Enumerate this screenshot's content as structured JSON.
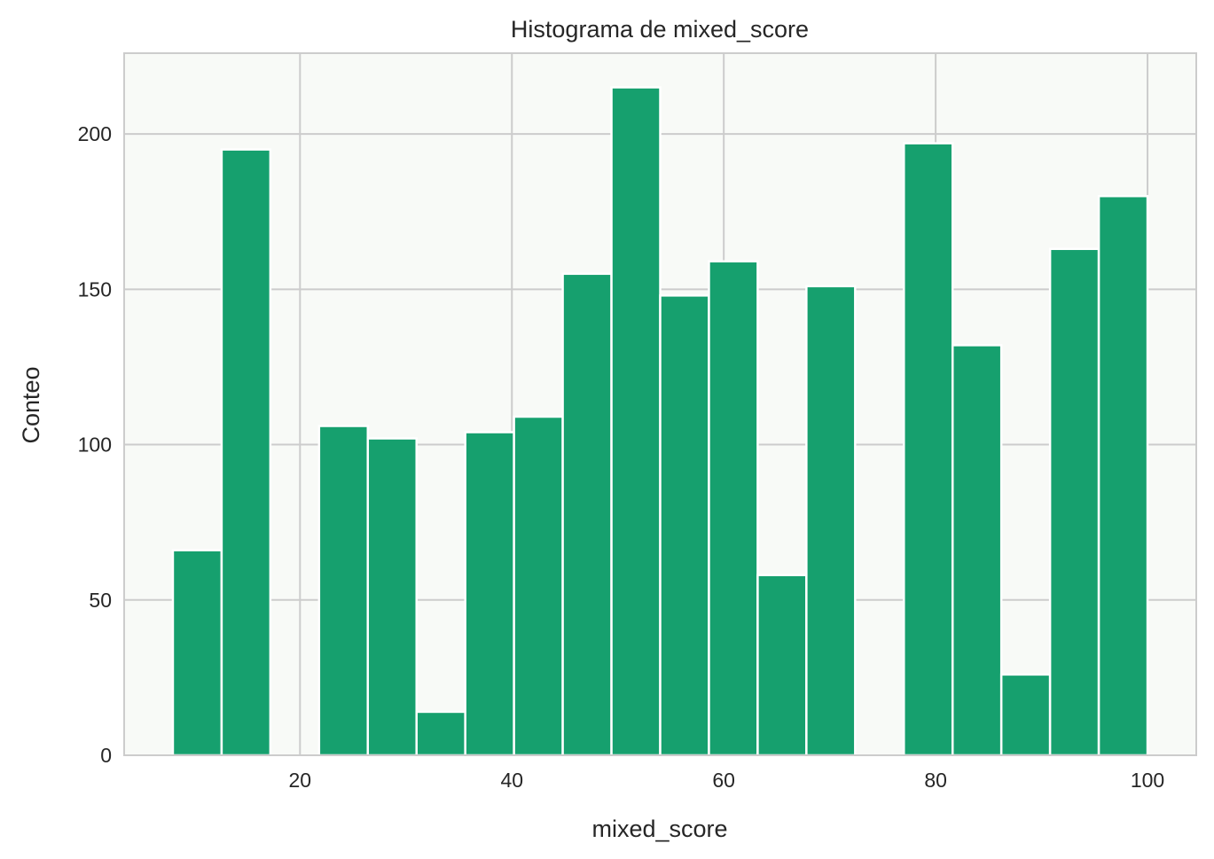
{
  "chart_data": {
    "type": "bar",
    "subtype": "histogram",
    "title": "Histograma de mixed_score",
    "xlabel": "mixed_score",
    "ylabel": "Conteo",
    "xlim": [
      3.4,
      104.6
    ],
    "ylim": [
      0,
      226
    ],
    "x_ticks": [
      20,
      40,
      60,
      80,
      100
    ],
    "x_tick_labels": [
      "20",
      "40",
      "60",
      "80",
      "100"
    ],
    "y_ticks": [
      0,
      50,
      100,
      150,
      200
    ],
    "y_tick_labels": [
      "0",
      "50",
      "100",
      "150",
      "200"
    ],
    "grid": true,
    "legend": "none",
    "bins": [
      {
        "x0": 8.0,
        "x1": 12.6,
        "count": 66
      },
      {
        "x0": 12.6,
        "x1": 17.2,
        "count": 195
      },
      {
        "x0": 17.2,
        "x1": 21.8,
        "count": 0
      },
      {
        "x0": 21.8,
        "x1": 26.4,
        "count": 106
      },
      {
        "x0": 26.4,
        "x1": 31.0,
        "count": 102
      },
      {
        "x0": 31.0,
        "x1": 35.6,
        "count": 14
      },
      {
        "x0": 35.6,
        "x1": 40.2,
        "count": 104
      },
      {
        "x0": 40.2,
        "x1": 44.8,
        "count": 109
      },
      {
        "x0": 44.8,
        "x1": 49.4,
        "count": 155
      },
      {
        "x0": 49.4,
        "x1": 54.0,
        "count": 215
      },
      {
        "x0": 54.0,
        "x1": 58.6,
        "count": 148
      },
      {
        "x0": 58.6,
        "x1": 63.2,
        "count": 159
      },
      {
        "x0": 63.2,
        "x1": 67.8,
        "count": 58
      },
      {
        "x0": 67.8,
        "x1": 72.4,
        "count": 151
      },
      {
        "x0": 72.4,
        "x1": 77.0,
        "count": 0
      },
      {
        "x0": 77.0,
        "x1": 81.6,
        "count": 197
      },
      {
        "x0": 81.6,
        "x1": 86.2,
        "count": 132
      },
      {
        "x0": 86.2,
        "x1": 90.8,
        "count": 26
      },
      {
        "x0": 90.8,
        "x1": 95.4,
        "count": 163
      },
      {
        "x0": 95.4,
        "x1": 100.0,
        "count": 180
      }
    ],
    "colors": {
      "bar": "#16a06e",
      "plot_background": "#f8faf7",
      "grid": "#cccccc",
      "axes_edge": "#cccccc",
      "bar_edge": "#ffffff"
    }
  }
}
